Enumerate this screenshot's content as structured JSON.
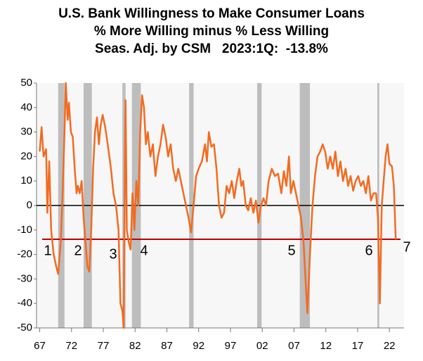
{
  "chart_data": {
    "type": "line",
    "title": [
      "U.S. Bank Willingness to Make Consumer Loans",
      "% More Willing minus % Less Willing",
      "Seas. Adj. by CSM   2023:1Q:  -13.8%"
    ],
    "color": "#f26b21",
    "reference_line": -13.8,
    "reference_color": "#c00000",
    "recession_color": "#bdbdbd",
    "recessions": [
      [
        1969.9,
        1970.9
      ],
      [
        1973.9,
        1975.2
      ],
      [
        1980.0,
        1980.5
      ],
      [
        1981.5,
        1982.9
      ],
      [
        1990.5,
        1991.2
      ],
      [
        2001.2,
        2001.9
      ],
      [
        2007.9,
        2009.5
      ],
      [
        2020.1,
        2020.4
      ]
    ],
    "annotations": [
      "1",
      "2",
      "3",
      "4",
      "5",
      "6",
      "7"
    ],
    "xlim": [
      1966.5,
      2024.3
    ],
    "xticks": [
      {
        "value": 1967,
        "label": "67"
      },
      {
        "value": 1972,
        "label": "72"
      },
      {
        "value": 1977,
        "label": "77"
      },
      {
        "value": 1982,
        "label": "82"
      },
      {
        "value": 1987,
        "label": "87"
      },
      {
        "value": 1992,
        "label": "92"
      },
      {
        "value": 1997,
        "label": "97"
      },
      {
        "value": 2002,
        "label": "02"
      },
      {
        "value": 2007,
        "label": "07"
      },
      {
        "value": 2012,
        "label": "12"
      },
      {
        "value": 2017,
        "label": "17"
      },
      {
        "value": 2022,
        "label": "22"
      }
    ],
    "ylim": [
      -50,
      50
    ],
    "yticks": [
      -50,
      -40,
      -30,
      -20,
      -10,
      0,
      10,
      20,
      30,
      40,
      50
    ],
    "x": [
      1967.0,
      1967.3,
      1967.6,
      1968.0,
      1968.2,
      1968.5,
      1968.8,
      1969.2,
      1969.6,
      1969.9,
      1970.3,
      1970.6,
      1970.9,
      1971.1,
      1971.4,
      1971.6,
      1971.9,
      1972.2,
      1972.5,
      1972.8,
      1973.0,
      1973.3,
      1973.6,
      1973.9,
      1974.2,
      1974.5,
      1974.8,
      1975.1,
      1975.4,
      1975.7,
      1976.0,
      1976.3,
      1976.6,
      1976.9,
      1977.3,
      1977.7,
      1978.2,
      1978.6,
      1979.0,
      1979.4,
      1979.7,
      1980.0,
      1980.2,
      1980.4,
      1980.5,
      1980.7,
      1981.0,
      1981.3,
      1981.6,
      1981.9,
      1982.2,
      1982.5,
      1982.8,
      1983.1,
      1983.4,
      1983.7,
      1984.0,
      1984.4,
      1984.8,
      1985.2,
      1985.6,
      1986.0,
      1986.4,
      1986.8,
      1987.2,
      1987.6,
      1988.0,
      1988.4,
      1988.8,
      1989.2,
      1989.6,
      1990.0,
      1990.4,
      1990.8,
      1991.2,
      1991.6,
      1992.0,
      1992.5,
      1993.0,
      1993.3,
      1993.6,
      1994.0,
      1994.4,
      1994.8,
      1995.2,
      1995.6,
      1996.0,
      1996.4,
      1996.8,
      1997.2,
      1997.6,
      1998.0,
      1998.4,
      1998.7,
      1999.0,
      1999.4,
      1999.8,
      2000.2,
      2000.6,
      2001.0,
      2001.4,
      2001.8,
      2002.2,
      2002.6,
      2003.0,
      2003.5,
      2004.0,
      2004.5,
      2005.0,
      2005.4,
      2005.8,
      2006.2,
      2006.5,
      2006.9,
      2007.3,
      2007.7,
      2008.1,
      2008.5,
      2008.9,
      2009.1,
      2009.5,
      2009.9,
      2010.3,
      2010.7,
      2011.1,
      2011.5,
      2011.9,
      2012.3,
      2012.7,
      2013.1,
      2013.5,
      2013.9,
      2014.3,
      2014.7,
      2015.1,
      2015.5,
      2015.9,
      2016.3,
      2016.7,
      2017.1,
      2017.5,
      2017.9,
      2018.3,
      2018.7,
      2019.1,
      2019.5,
      2019.9,
      2020.2,
      2020.5,
      2020.8,
      2021.1,
      2021.4,
      2021.7,
      2022.0,
      2022.4,
      2022.7,
      2023.0
    ],
    "values": [
      22,
      32,
      20,
      23,
      -3,
      18,
      -10,
      -20,
      -25,
      -28,
      -15,
      5,
      30,
      50,
      35,
      42,
      30,
      28,
      15,
      5,
      8,
      5,
      10,
      -5,
      -15,
      -25,
      -27,
      -10,
      15,
      30,
      36,
      25,
      33,
      37,
      32,
      25,
      15,
      5,
      0,
      -10,
      -40,
      -43,
      -50,
      20,
      43,
      -10,
      -15,
      -18,
      5,
      -10,
      10,
      0,
      30,
      45,
      40,
      25,
      30,
      20,
      25,
      12,
      20,
      25,
      33,
      28,
      20,
      25,
      15,
      10,
      15,
      10,
      5,
      0,
      -5,
      -11,
      0,
      12,
      15,
      18,
      25,
      18,
      30,
      24,
      25,
      15,
      0,
      -5,
      -3,
      8,
      5,
      10,
      3,
      10,
      15,
      8,
      10,
      0,
      -2,
      3,
      -3,
      2,
      -7,
      0,
      3,
      0,
      10,
      15,
      12,
      13,
      5,
      14,
      8,
      20,
      5,
      10,
      5,
      0,
      -5,
      -15,
      -35,
      -44,
      -20,
      0,
      12,
      20,
      22,
      25,
      22,
      15,
      20,
      15,
      22,
      12,
      18,
      10,
      15,
      8,
      12,
      6,
      10,
      12,
      8,
      10,
      5,
      12,
      2,
      5,
      5,
      -5,
      -40,
      0,
      10,
      20,
      25,
      17,
      16,
      8,
      -13.8
    ]
  }
}
